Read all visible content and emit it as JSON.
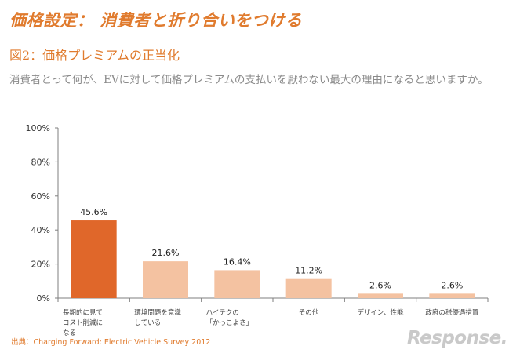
{
  "header": {
    "title": "価格設定： 消費者と折り合いをつける",
    "subtitle": "図2：価格プレミアムの正当化",
    "question": "消費者とって何が、EVに対して価格プレミアムの支払いを厭わない最大の理由になると思いますか。"
  },
  "chart_data": {
    "type": "bar",
    "categories": [
      [
        "長期的に見て",
        "コスト削減に",
        "なる"
      ],
      [
        "環境問題を意識",
        "している"
      ],
      [
        "ハイテクの",
        "「かっこよさ」"
      ],
      [
        "その他"
      ],
      [
        "デザイン、性能"
      ],
      [
        "政府の税優遇措置"
      ]
    ],
    "values": [
      45.6,
      21.6,
      16.4,
      11.2,
      2.6,
      2.6
    ],
    "value_labels": [
      "45.6%",
      "21.6%",
      "16.4%",
      "11.2%",
      "2.6%",
      "2.6%"
    ],
    "yticks": [
      "0%",
      "20%",
      "40%",
      "60%",
      "80%",
      "100%"
    ],
    "ylim": [
      0,
      100
    ],
    "colors": [
      "#e0672a",
      "#f4c2a1",
      "#f4c2a1",
      "#f4c2a1",
      "#f4c2a1",
      "#f4c2a1"
    ],
    "axis_color": "#7f7f7f"
  },
  "footer": {
    "source": "出典：Charging Forward: Electric Vehicle Survey 2012",
    "watermark": "Response."
  }
}
